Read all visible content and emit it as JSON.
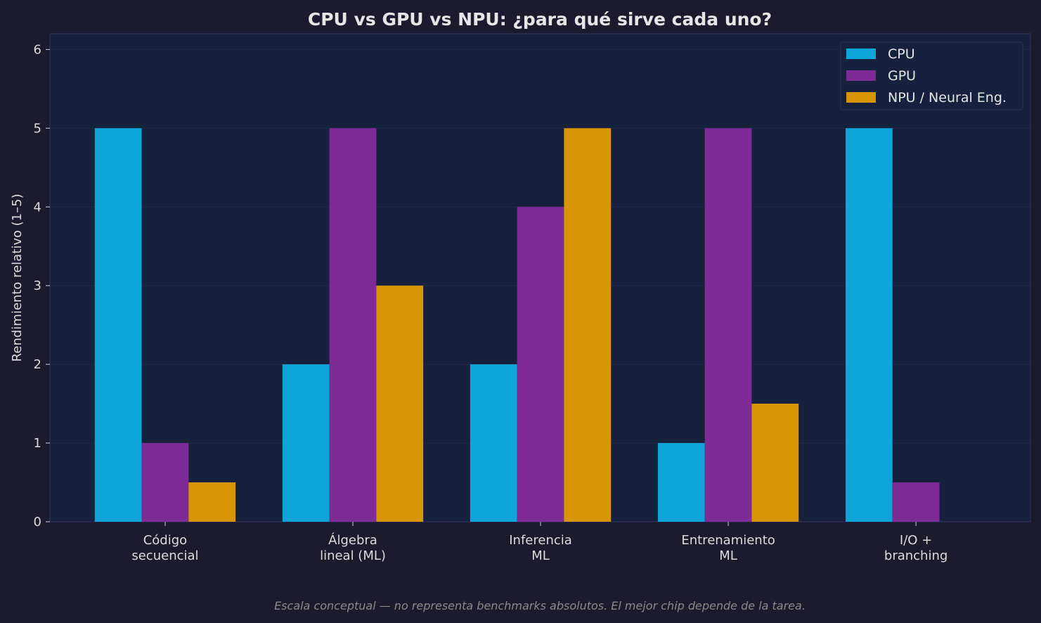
{
  "chart_data": {
    "type": "bar",
    "title": "CPU vs GPU vs NPU: ¿para qué sirve cada uno?",
    "xlabel": "",
    "ylabel": "Rendimiento relativo (1–5)",
    "ylim": [
      0,
      6.2
    ],
    "yticks": [
      0,
      1,
      2,
      3,
      4,
      5,
      6
    ],
    "grid": true,
    "legend_position": "top-right",
    "categories": [
      [
        "Código",
        "secuencial"
      ],
      [
        "Álgebra",
        "lineal (ML)"
      ],
      [
        "Inferencia",
        "ML"
      ],
      [
        "Entrenamiento",
        "ML"
      ],
      [
        "I/O +",
        "branching"
      ]
    ],
    "series": [
      {
        "name": "CPU",
        "color": "#0ea5d9",
        "values": [
          5,
          2,
          2,
          1,
          5
        ]
      },
      {
        "name": "GPU",
        "color": "#7e2a97",
        "values": [
          1,
          5,
          4,
          5,
          0.5
        ]
      },
      {
        "name": "NPU / Neural Eng.",
        "color": "#d89606",
        "values": [
          0.5,
          3,
          5,
          1.5,
          0
        ]
      }
    ],
    "footnote": "Escala conceptual — no representa benchmarks absolutos. El mejor chip depende de la tarea."
  },
  "colors": {
    "background": "#1b1a2e",
    "plot_background": "#16213e"
  }
}
